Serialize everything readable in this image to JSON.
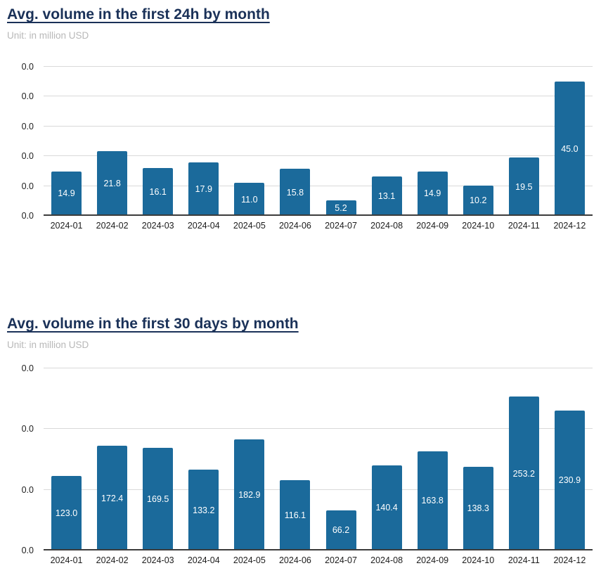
{
  "chart_data": [
    {
      "type": "bar",
      "title": "Avg. volume in the first 24h by month",
      "subtitle": "Unit: in million USD",
      "unit": "million USD",
      "categories": [
        "2024-01",
        "2024-02",
        "2024-03",
        "2024-04",
        "2024-05",
        "2024-06",
        "2024-07",
        "2024-08",
        "2024-09",
        "2024-10",
        "2024-11",
        "2024-12"
      ],
      "values": [
        14.9,
        21.8,
        16.1,
        17.9,
        11.0,
        15.8,
        5.2,
        13.1,
        14.9,
        10.2,
        19.5,
        45.0
      ],
      "value_labels": [
        "14.9",
        "21.8",
        "16.1",
        "17.9",
        "11.0",
        "15.8",
        "5.2",
        "13.1",
        "14.9",
        "10.2",
        "19.5",
        "45.0"
      ],
      "xlabel": "",
      "ylabel": "",
      "ylim": [
        0,
        50
      ],
      "y_tick_labels": [
        "0.0",
        "0.0",
        "0.0",
        "0.0",
        "0.0",
        "0.0"
      ],
      "grid": true,
      "legend": false,
      "bar_color": "#1b6a9b",
      "bar_label_color": "#ffffff",
      "title_color": "#1a3158",
      "subtitle_color": "#b8b8b8"
    },
    {
      "type": "bar",
      "title": "Avg. volume in the first 30 days by month",
      "subtitle": "Unit: in million USD",
      "unit": "million USD",
      "categories": [
        "2024-01",
        "2024-02",
        "2024-03",
        "2024-04",
        "2024-05",
        "2024-06",
        "2024-07",
        "2024-08",
        "2024-09",
        "2024-10",
        "2024-11",
        "2024-12"
      ],
      "values": [
        123.0,
        172.4,
        169.5,
        133.2,
        182.9,
        116.1,
        66.2,
        140.4,
        163.8,
        138.3,
        253.2,
        230.9
      ],
      "value_labels": [
        "123.0",
        "172.4",
        "169.5",
        "133.2",
        "182.9",
        "116.1",
        "66.2",
        "140.4",
        "163.8",
        "138.3",
        "253.2",
        "230.9"
      ],
      "xlabel": "",
      "ylabel": "",
      "ylim": [
        0,
        300
      ],
      "y_tick_labels": [
        "0.0",
        "0.0",
        "0.0",
        "0.0"
      ],
      "grid": true,
      "legend": false,
      "bar_color": "#1b6a9b",
      "bar_label_color": "#ffffff",
      "title_color": "#1a3158",
      "subtitle_color": "#b8b8b8"
    }
  ]
}
